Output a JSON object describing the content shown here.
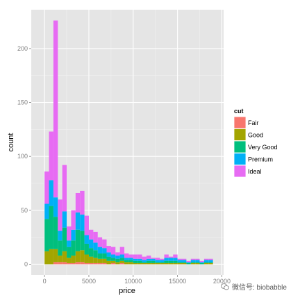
{
  "watermark": "微信号: biobabble",
  "chart_data": {
    "type": "bar",
    "stacked": true,
    "xlabel": "price",
    "ylabel": "count",
    "xlim": [
      -1500,
      20200
    ],
    "ylim": [
      -10,
      236
    ],
    "xticks": [
      0,
      5000,
      10000,
      15000,
      20000
    ],
    "xtick_labels": [
      "0",
      "5000",
      "10000",
      "15000",
      "20000"
    ],
    "yticks": [
      0,
      50,
      100,
      150,
      200
    ],
    "ytick_labels": [
      "0",
      "50",
      "100",
      "150",
      "200"
    ],
    "grid": true,
    "bin_width": 500,
    "bins_start": [
      0,
      500,
      1000,
      1500,
      2000,
      2500,
      3000,
      3500,
      4000,
      4500,
      5000,
      5500,
      6000,
      6500,
      7000,
      7500,
      8000,
      8500,
      9000,
      9500,
      10000,
      10500,
      11000,
      11500,
      12000,
      12500,
      13000,
      13500,
      14000,
      14500,
      15000,
      15500,
      16000,
      16500,
      17000,
      17500,
      18000,
      18500
    ],
    "legend": {
      "title": "cut",
      "position": "right"
    },
    "series": [
      {
        "name": "Fair",
        "color": "#F8766D",
        "values": [
          0,
          0,
          2,
          2,
          2,
          1,
          1,
          2,
          2,
          1,
          1,
          1,
          1,
          1,
          0,
          1,
          0,
          1,
          0,
          0,
          0,
          0,
          0,
          0,
          0,
          0,
          0,
          0,
          0,
          0,
          0,
          0,
          0,
          0,
          0,
          0,
          0,
          0
        ]
      },
      {
        "name": "Good",
        "color": "#A3A500",
        "values": [
          12,
          14,
          12,
          6,
          10,
          5,
          7,
          10,
          11,
          8,
          6,
          5,
          4,
          4,
          3,
          2,
          2,
          2,
          2,
          2,
          1,
          1,
          1,
          1,
          1,
          1,
          1,
          1,
          1,
          1,
          1,
          1,
          0,
          1,
          1,
          0,
          1,
          1
        ]
      },
      {
        "name": "Very Good",
        "color": "#00BF7D",
        "values": [
          30,
          40,
          30,
          14,
          22,
          10,
          14,
          20,
          18,
          10,
          8,
          7,
          5,
          5,
          4,
          3,
          3,
          3,
          2,
          2,
          2,
          2,
          1,
          2,
          2,
          1,
          1,
          2,
          2,
          2,
          1,
          1,
          1,
          1,
          1,
          1,
          1,
          1
        ]
      },
      {
        "name": "Premium",
        "color": "#00B0F6",
        "values": [
          14,
          24,
          18,
          9,
          15,
          6,
          10,
          16,
          15,
          8,
          8,
          7,
          6,
          5,
          4,
          3,
          3,
          3,
          2,
          2,
          2,
          2,
          2,
          2,
          2,
          2,
          2,
          3,
          3,
          3,
          2,
          2,
          1,
          2,
          2,
          1,
          2,
          2
        ]
      },
      {
        "name": "Ideal",
        "color": "#E76BF3",
        "values": [
          30,
          45,
          164,
          29,
          43,
          13,
          18,
          18,
          22,
          18,
          9,
          10,
          9,
          8,
          6,
          7,
          3,
          7,
          4,
          3,
          4,
          4,
          3,
          3,
          1,
          2,
          1,
          3,
          1,
          3,
          1,
          1,
          1,
          1,
          1,
          1,
          1,
          1
        ]
      }
    ]
  }
}
